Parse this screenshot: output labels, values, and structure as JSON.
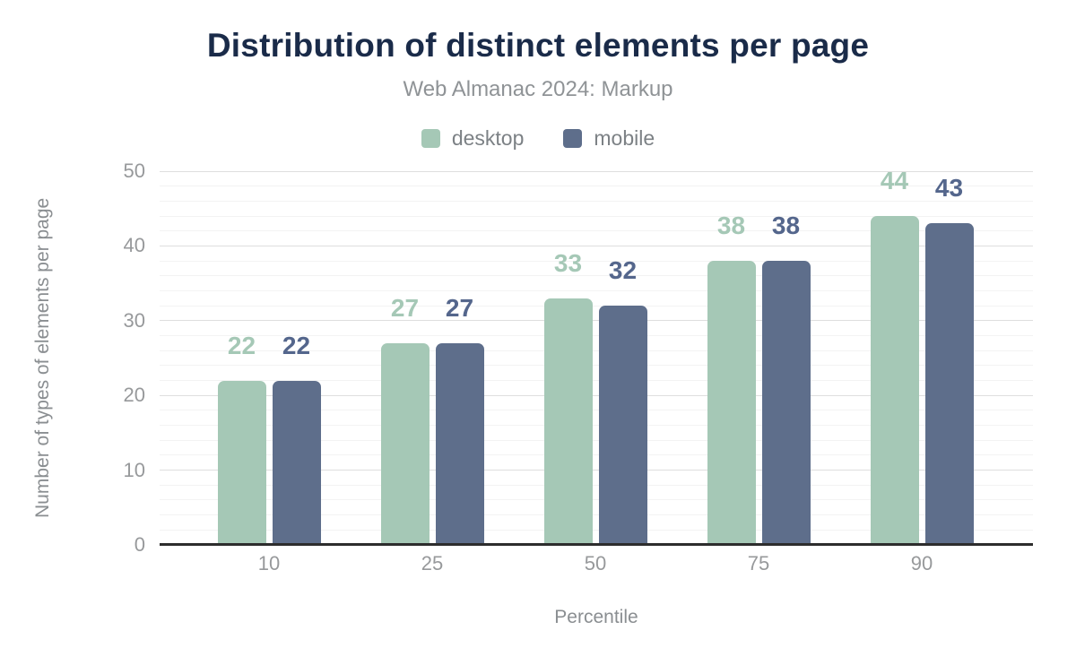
{
  "chart_data": {
    "type": "bar",
    "title": "Distribution of distinct elements per page",
    "subtitle": "Web Almanac 2024: Markup",
    "categories": [
      "10",
      "25",
      "50",
      "75",
      "90"
    ],
    "series": [
      {
        "name": "desktop",
        "values": [
          22,
          27,
          33,
          38,
          44
        ],
        "color": "#a5c8b6",
        "label_color": "#a5c8b6"
      },
      {
        "name": "mobile",
        "values": [
          22,
          27,
          32,
          38,
          43
        ],
        "color": "#5e6e8b",
        "label_color": "#54668c"
      }
    ],
    "xlabel": "Percentile",
    "ylabel": "Number of types of elements per page",
    "ylim": [
      0,
      50
    ],
    "yticks": [
      0,
      10,
      20,
      30,
      40,
      50
    ],
    "minor_grid_step": 2,
    "grid": true,
    "legend_position": "top",
    "data_labels": true
  },
  "colors": {
    "background": "#ffffff",
    "title": "#1a2b49",
    "subtitle": "#8f9396",
    "axis_title": "#8a8e91",
    "tick": "#97999b",
    "legend_label": "#7c8185",
    "baseline": "#2d2d2d",
    "grid_major": "#dedede",
    "grid_minor": "#f3f3f3"
  }
}
